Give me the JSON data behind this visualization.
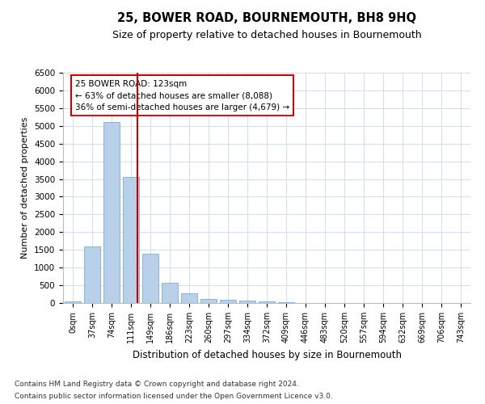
{
  "title": "25, BOWER ROAD, BOURNEMOUTH, BH8 9HQ",
  "subtitle": "Size of property relative to detached houses in Bournemouth",
  "xlabel": "Distribution of detached houses by size in Bournemouth",
  "ylabel": "Number of detached properties",
  "footer_line1": "Contains HM Land Registry data © Crown copyright and database right 2024.",
  "footer_line2": "Contains public sector information licensed under the Open Government Licence v3.0.",
  "annotation_title": "25 BOWER ROAD: 123sqm",
  "annotation_line2": "← 63% of detached houses are smaller (8,088)",
  "annotation_line3": "36% of semi-detached houses are larger (4,679) →",
  "categories": [
    "0sqm",
    "37sqm",
    "74sqm",
    "111sqm",
    "149sqm",
    "186sqm",
    "223sqm",
    "260sqm",
    "297sqm",
    "334sqm",
    "372sqm",
    "409sqm",
    "446sqm",
    "483sqm",
    "520sqm",
    "557sqm",
    "594sqm",
    "632sqm",
    "669sqm",
    "706sqm",
    "743sqm"
  ],
  "values": [
    50,
    1600,
    5100,
    3550,
    1380,
    580,
    270,
    120,
    95,
    65,
    45,
    20,
    10,
    5,
    3,
    2,
    1,
    1,
    0,
    0,
    0
  ],
  "bar_color": "#b8d0e8",
  "bar_edge_color": "#6aa0cc",
  "vline_color": "#cc0000",
  "ylim": [
    0,
    6500
  ],
  "yticks": [
    0,
    500,
    1000,
    1500,
    2000,
    2500,
    3000,
    3500,
    4000,
    4500,
    5000,
    5500,
    6000,
    6500
  ],
  "grid_color": "#c8d8ea",
  "background_color": "#ffffff",
  "annotation_box_color": "#ffffff",
  "annotation_box_edge": "#cc0000"
}
